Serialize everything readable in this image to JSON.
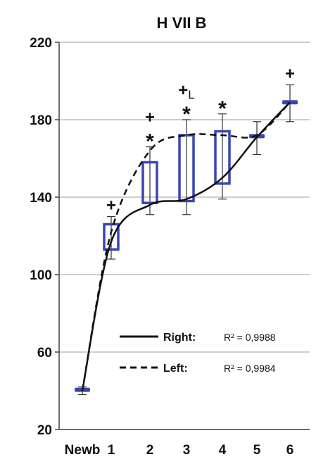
{
  "chart_data": {
    "type": "line",
    "title": "H VII B",
    "xlabel": "",
    "ylabel": "",
    "categories": [
      "Newb",
      "1",
      "2",
      "3",
      "4",
      "5",
      "6"
    ],
    "ylim": [
      20,
      220
    ],
    "yticks": [
      20,
      60,
      100,
      140,
      180,
      220
    ],
    "grid": true,
    "legend": [
      {
        "label": "Right:",
        "style": "solid",
        "r2": "R² = 0,9988"
      },
      {
        "label": "Left:",
        "style": "dashed",
        "r2": "R² = 0,9984"
      }
    ],
    "series": [
      {
        "name": "Right",
        "style": "solid",
        "values": [
          40,
          117,
          136,
          139,
          150,
          171,
          189
        ]
      },
      {
        "name": "Left",
        "style": "dashed",
        "values": [
          40,
          122,
          164,
          172,
          172,
          172,
          189
        ]
      }
    ],
    "boxes": [
      {
        "category": "Newb",
        "low": 40,
        "high": 41,
        "err_low": 38,
        "err_high": 42
      },
      {
        "category": "1",
        "low": 113,
        "high": 126,
        "err_low": 108,
        "err_high": 130
      },
      {
        "category": "2",
        "low": 137,
        "high": 158,
        "err_low": 131,
        "err_high": 166
      },
      {
        "category": "3",
        "low": 138,
        "high": 172,
        "err_low": 131,
        "err_high": 180
      },
      {
        "category": "4",
        "low": 147,
        "high": 174,
        "err_low": 139,
        "err_high": 183
      },
      {
        "category": "5",
        "low": 171,
        "high": 172,
        "err_low": 162,
        "err_high": 179
      },
      {
        "category": "6",
        "low": 188,
        "high": 190,
        "err_low": 179,
        "err_high": 198
      }
    ],
    "annotations": [
      {
        "category": "1",
        "text": "+"
      },
      {
        "category": "2",
        "text": "+"
      },
      {
        "category": "2",
        "text": "*"
      },
      {
        "category": "3",
        "text": "+L"
      },
      {
        "category": "3",
        "text": "*"
      },
      {
        "category": "4",
        "text": "*"
      },
      {
        "category": "6",
        "text": "+"
      }
    ],
    "colors": {
      "box": "#3a46b0",
      "line": "#111111",
      "grid": "#b0b0b0"
    }
  }
}
